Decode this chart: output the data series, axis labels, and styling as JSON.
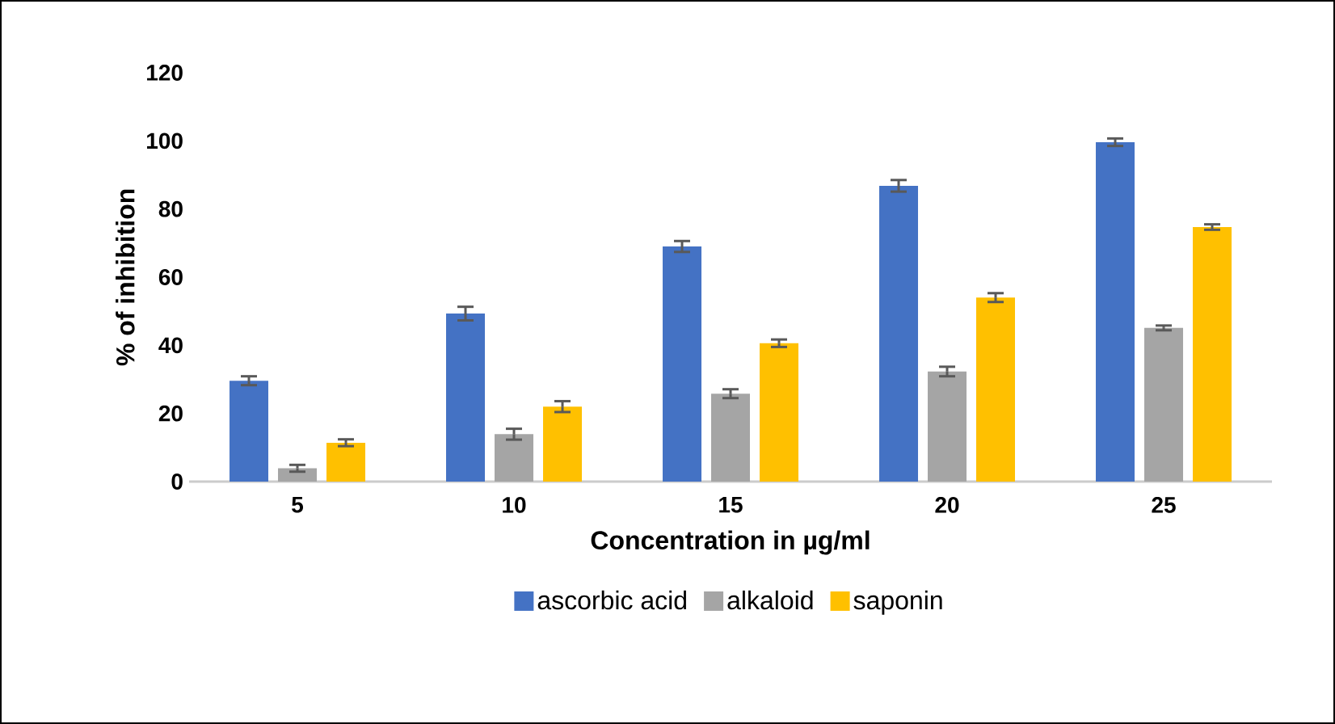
{
  "chart_data": {
    "type": "bar",
    "xlabel": "Concentration in µg/ml",
    "ylabel": "% of inhibition",
    "categories": [
      "5",
      "10",
      "15",
      "20",
      "25"
    ],
    "series": [
      {
        "name": "ascorbic acid",
        "color": "#4472c4",
        "values": [
          29.6,
          49.3,
          69.0,
          86.8,
          99.6
        ],
        "errors": [
          1.3,
          2.0,
          1.6,
          1.7,
          1.1
        ]
      },
      {
        "name": "alkaloid",
        "color": "#a5a5a5",
        "values": [
          3.9,
          13.9,
          25.8,
          32.3,
          45.1
        ],
        "errors": [
          1.0,
          1.6,
          1.3,
          1.4,
          0.7
        ]
      },
      {
        "name": "saponin",
        "color": "#ffc000",
        "values": [
          11.4,
          22.0,
          40.6,
          54.0,
          74.7
        ],
        "errors": [
          1.0,
          1.6,
          1.1,
          1.3,
          0.8
        ]
      }
    ],
    "ylim": [
      0,
      120
    ],
    "yticks": [
      0,
      20,
      40,
      60,
      80,
      100,
      120
    ],
    "grid": false,
    "legend": "bottom"
  }
}
